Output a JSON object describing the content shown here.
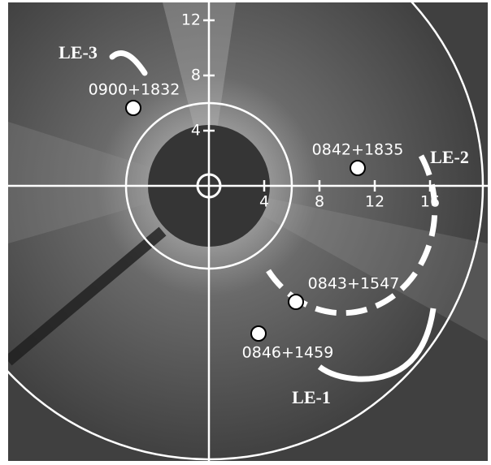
{
  "axes": {
    "xticks": [
      4,
      8,
      12,
      16
    ],
    "yticks": [
      4,
      8,
      12
    ]
  },
  "sources": [
    {
      "label": "0900+1832"
    },
    {
      "label": "0842+1835"
    },
    {
      "label": "0843+1547"
    },
    {
      "label": "0846+1459"
    }
  ],
  "features": [
    {
      "label": "LE-1"
    },
    {
      "label": "LE-2"
    },
    {
      "label": "LE-3"
    }
  ]
}
